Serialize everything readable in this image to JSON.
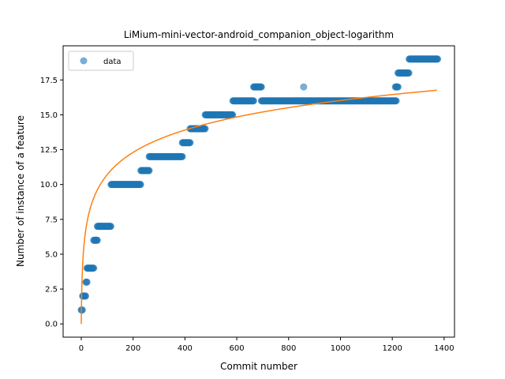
{
  "chart_data": {
    "type": "scatter",
    "title": "LiMium-mini-vector-android_companion_object-logarithm",
    "xlabel": "Commit number",
    "ylabel": "Number of instance of a feature",
    "xlim": [
      -70,
      1440
    ],
    "ylim": [
      -0.95,
      19.95
    ],
    "xticks": [
      0,
      200,
      400,
      600,
      800,
      1000,
      1200,
      1400
    ],
    "xtick_labels": [
      "0",
      "200",
      "400",
      "600",
      "800",
      "1000",
      "1200",
      "1400"
    ],
    "yticks": [
      0,
      2.5,
      5,
      7.5,
      10,
      12.5,
      15,
      17.5
    ],
    "ytick_labels": [
      "0.0",
      "2.5",
      "5.0",
      "7.5",
      "10.0",
      "12.5",
      "15.0",
      "17.5"
    ],
    "grid": false,
    "legend": {
      "position": "top-left",
      "entries": [
        "data"
      ]
    },
    "colors": {
      "data": "#1f77b4",
      "fit": "#ff7f0e"
    },
    "series": [
      {
        "name": "data",
        "kind": "scatter",
        "segments": [
          {
            "y": 1,
            "x_start": 0,
            "x_end": 5
          },
          {
            "y": 2,
            "x_start": 5,
            "x_end": 18
          },
          {
            "y": 3,
            "x_start": 18,
            "x_end": 22
          },
          {
            "y": 4,
            "x_start": 22,
            "x_end": 48
          },
          {
            "y": 6,
            "x_start": 48,
            "x_end": 62
          },
          {
            "y": 7,
            "x_start": 62,
            "x_end": 115
          },
          {
            "y": 10,
            "x_start": 115,
            "x_end": 230
          },
          {
            "y": 11,
            "x_start": 230,
            "x_end": 262
          },
          {
            "y": 12,
            "x_start": 262,
            "x_end": 390
          },
          {
            "y": 13,
            "x_start": 390,
            "x_end": 420
          },
          {
            "y": 14,
            "x_start": 420,
            "x_end": 478
          },
          {
            "y": 15,
            "x_start": 478,
            "x_end": 585
          },
          {
            "y": 16,
            "x_start": 585,
            "x_end": 665
          },
          {
            "y": 17,
            "x_start": 665,
            "x_end": 695
          },
          {
            "y": 16,
            "x_start": 695,
            "x_end": 1215
          },
          {
            "y": 17,
            "x_start": 1212,
            "x_end": 1222
          },
          {
            "y": 18,
            "x_start": 1222,
            "x_end": 1265
          },
          {
            "y": 19,
            "x_start": 1265,
            "x_end": 1375
          }
        ],
        "extra_points": [
          {
            "x": 858,
            "y": 17
          }
        ]
      },
      {
        "name": "",
        "kind": "line",
        "model": "logarithm",
        "coefficients": {
          "a": 2.32,
          "b": 0.0,
          "log_offset": 1
        },
        "x_range": [
          0,
          1375
        ]
      }
    ]
  }
}
